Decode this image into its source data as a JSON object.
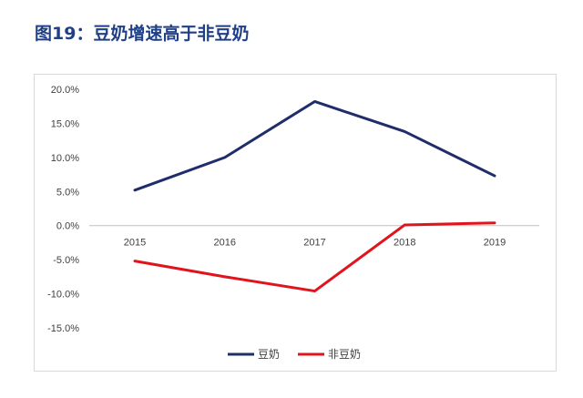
{
  "title": "图19：豆奶增速高于非豆奶",
  "chart_data": {
    "type": "line",
    "title": "",
    "xlabel": "",
    "ylabel": "",
    "categories": [
      "2015",
      "2016",
      "2017",
      "2018",
      "2019"
    ],
    "y_tick_labels": [
      "20.0%",
      "15.0%",
      "10.0%",
      "5.0%",
      "0.0%",
      "-5.0%",
      "-10.0%",
      "-15.0%"
    ],
    "y_ticks": [
      20,
      15,
      10,
      5,
      0,
      -5,
      -10,
      -15
    ],
    "ylim": [
      -15,
      20
    ],
    "grid": false,
    "legend_position": "bottom",
    "series": [
      {
        "name": "豆奶",
        "color": "#1f2d6b",
        "values": [
          5.2,
          10.0,
          18.2,
          13.8,
          7.3
        ]
      },
      {
        "name": "非豆奶",
        "color": "#e0141c",
        "values": [
          -5.2,
          -7.5,
          -9.6,
          0.1,
          0.4
        ]
      }
    ]
  }
}
